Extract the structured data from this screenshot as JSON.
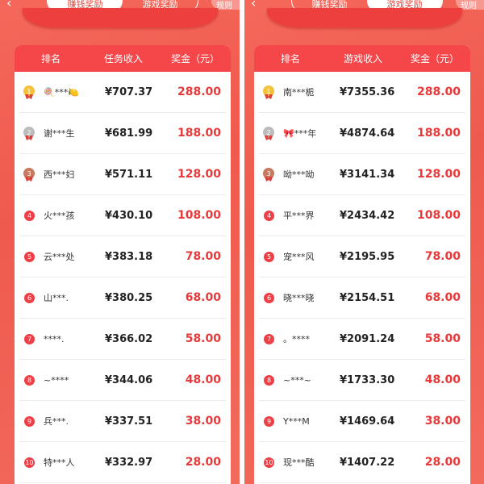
{
  "panels": [
    {
      "tabs": [
        "赚钱奖励",
        "游戏奖励"
      ],
      "active_tab": 0,
      "rules": "规则",
      "headers": [
        "排名",
        "任务收入",
        "奖金（元）"
      ],
      "rows": [
        {
          "rank": "1",
          "name": "🍭***🍋",
          "income": "¥707.37",
          "prize": "288.00"
        },
        {
          "rank": "2",
          "name": "谢***生",
          "income": "¥681.99",
          "prize": "188.00"
        },
        {
          "rank": "3",
          "name": "西***妇",
          "income": "¥571.11",
          "prize": "128.00"
        },
        {
          "rank": "4",
          "name": "火***孩",
          "income": "¥430.10",
          "prize": "108.00"
        },
        {
          "rank": "5",
          "name": "云***处",
          "income": "¥383.18",
          "prize": "78.00"
        },
        {
          "rank": "6",
          "name": "山***.",
          "income": "¥380.25",
          "prize": "68.00"
        },
        {
          "rank": "7",
          "name": "****.",
          "income": "¥366.02",
          "prize": "58.00"
        },
        {
          "rank": "8",
          "name": "~****",
          "income": "¥344.06",
          "prize": "48.00"
        },
        {
          "rank": "9",
          "name": "兵***.",
          "income": "¥337.51",
          "prize": "38.00"
        },
        {
          "rank": "10",
          "name": "特***人",
          "income": "¥332.97",
          "prize": "28.00"
        }
      ]
    },
    {
      "tabs": [
        "赚钱奖励",
        "游戏奖励"
      ],
      "active_tab": 1,
      "rules": "规则",
      "headers": [
        "排名",
        "游戏收入",
        "奖金（元）"
      ],
      "rows": [
        {
          "rank": "1",
          "name": "南***栀",
          "income": "¥7355.36",
          "prize": "288.00"
        },
        {
          "rank": "2",
          "name": "🎀***年",
          "income": "¥4874.64",
          "prize": "188.00"
        },
        {
          "rank": "3",
          "name": "呦***呦",
          "income": "¥3141.34",
          "prize": "128.00"
        },
        {
          "rank": "4",
          "name": "平***界",
          "income": "¥2434.42",
          "prize": "108.00"
        },
        {
          "rank": "5",
          "name": "宠***风",
          "income": "¥2195.95",
          "prize": "78.00"
        },
        {
          "rank": "6",
          "name": "晓***晓",
          "income": "¥2154.51",
          "prize": "68.00"
        },
        {
          "rank": "7",
          "name": "。****",
          "income": "¥2091.24",
          "prize": "58.00"
        },
        {
          "rank": "8",
          "name": "~***~",
          "income": "¥1733.30",
          "prize": "48.00"
        },
        {
          "rank": "9",
          "name": "Y***M",
          "income": "¥1469.64",
          "prize": "38.00"
        },
        {
          "rank": "10",
          "name": "现***酷",
          "income": "¥1407.22",
          "prize": "28.00"
        }
      ]
    }
  ],
  "colors": {
    "accent": "#e8393a",
    "header": "#f5474a",
    "background": "#ef5a4e"
  }
}
